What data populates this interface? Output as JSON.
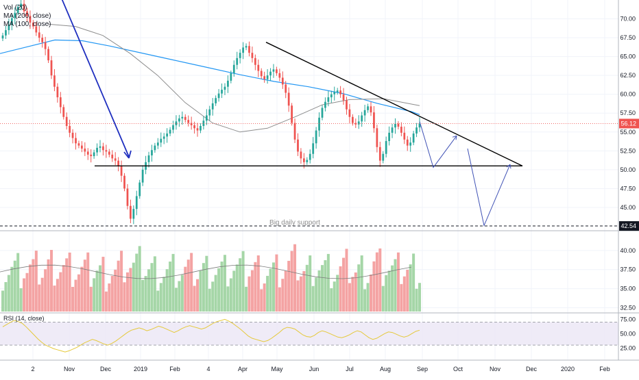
{
  "chart_data": {
    "type": "candlestick",
    "last_price": 56.12,
    "support_label_value": "42.54",
    "x_ticks": [
      "2",
      "Nov",
      "Dec",
      "2019",
      "Feb",
      "4",
      "Apr",
      "May",
      "Jun",
      "Jul",
      "Aug",
      "Sep",
      "Oct",
      "Nov",
      "Dec",
      "2020",
      "Feb"
    ],
    "price_axis": {
      "ticks": [
        "70.00",
        "67.50",
        "65.00",
        "62.50",
        "60.00",
        "57.50",
        "55.00",
        "52.50",
        "50.00",
        "47.50",
        "45.00"
      ],
      "range": [
        42.0,
        72.5
      ]
    },
    "volume_axis": {
      "ticks": [
        "40.00",
        "37.50",
        "35.00",
        "32.50"
      ],
      "range": [
        32.0,
        42.5
      ]
    },
    "rsi_axis": {
      "ticks": [
        "75.00",
        "50.00",
        "25.00"
      ],
      "range": [
        5,
        85
      ],
      "band": [
        30,
        70
      ]
    },
    "legend": {
      "vol": "Vol (20)",
      "ma200": "MA (200, close)",
      "ma100": "MA (100, close)",
      "rsi": "RSI (14, close)"
    },
    "annotations": {
      "support_text": "Big daily support"
    },
    "colors": {
      "up": "#26a69a",
      "down": "#ef5350",
      "vol_up": "#a5d6a7",
      "vol_down": "#f4a3a3",
      "ma200": "#2196f3",
      "ma100": "#8c8c8c",
      "rsi": "#e5c93b",
      "arrow": "#1f2fbf",
      "projection": "#3f51b5",
      "last_price_tag": "#ef5350",
      "support_tag": "#131722"
    },
    "candles_close": [
      67.8,
      68.5,
      69.2,
      70.1,
      70.8,
      71.6,
      72.0,
      71.0,
      70.4,
      69.5,
      69.0,
      68.2,
      67.5,
      66.9,
      66.0,
      64.5,
      62.5,
      61.0,
      59.6,
      58.3,
      57.0,
      55.8,
      54.9,
      54.2,
      53.5,
      53.2,
      52.8,
      52.4,
      52.0,
      51.8,
      52.3,
      52.9,
      53.1,
      52.6,
      52.4,
      52.0,
      51.5,
      51.2,
      50.5,
      49.2,
      47.5,
      45.2,
      43.5,
      44.8,
      46.5,
      48.3,
      50.0,
      51.0,
      51.9,
      52.6,
      53.2,
      53.6,
      54.1,
      54.4,
      54.8,
      55.3,
      55.9,
      56.4,
      56.8,
      57.0,
      56.6,
      56.2,
      55.9,
      55.5,
      55.2,
      55.8,
      56.5,
      57.2,
      58.0,
      58.8,
      59.5,
      60.1,
      60.6,
      61.0,
      61.8,
      62.8,
      63.9,
      64.8,
      65.5,
      66.2,
      66.4,
      65.5,
      64.8,
      63.9,
      63.1,
      62.4,
      62.0,
      62.5,
      63.0,
      63.3,
      62.8,
      62.2,
      61.3,
      60.2,
      58.5,
      56.2,
      54.0,
      52.4,
      51.5,
      51.0,
      51.3,
      52.1,
      53.5,
      55.2,
      56.9,
      58.2,
      59.0,
      59.6,
      60.0,
      60.3,
      60.5,
      60.0,
      59.2,
      58.0,
      57.0,
      56.2,
      56.0,
      56.4,
      57.2,
      57.9,
      58.4,
      57.6,
      55.5,
      53.0,
      51.2,
      52.1,
      53.8,
      54.9,
      55.6,
      56.1,
      55.7,
      54.9,
      54.0,
      53.2,
      53.6,
      54.8,
      55.6,
      56.12
    ],
    "rsi_values": [
      62,
      66,
      70,
      73,
      71,
      68,
      62,
      55,
      48,
      41,
      35,
      30,
      27,
      24,
      22,
      20,
      18,
      20,
      23,
      26,
      30,
      34,
      37,
      40,
      38,
      35,
      32,
      30,
      33,
      37,
      42,
      47,
      52,
      56,
      58,
      60,
      58,
      55,
      57,
      60,
      63,
      61,
      58,
      55,
      52,
      55,
      59,
      62,
      64,
      62,
      60,
      58,
      60,
      64,
      68,
      71,
      73,
      75,
      72,
      68,
      63,
      58,
      52,
      46,
      42,
      40,
      38,
      36,
      38,
      42,
      47,
      52,
      58,
      61,
      60,
      58,
      53,
      48,
      45,
      44,
      47,
      52,
      55,
      53,
      50,
      47,
      44,
      43,
      45,
      48,
      52,
      55,
      53,
      48,
      43,
      40,
      42,
      46,
      50,
      53,
      52,
      49,
      46,
      44,
      46,
      50,
      54,
      56
    ]
  }
}
